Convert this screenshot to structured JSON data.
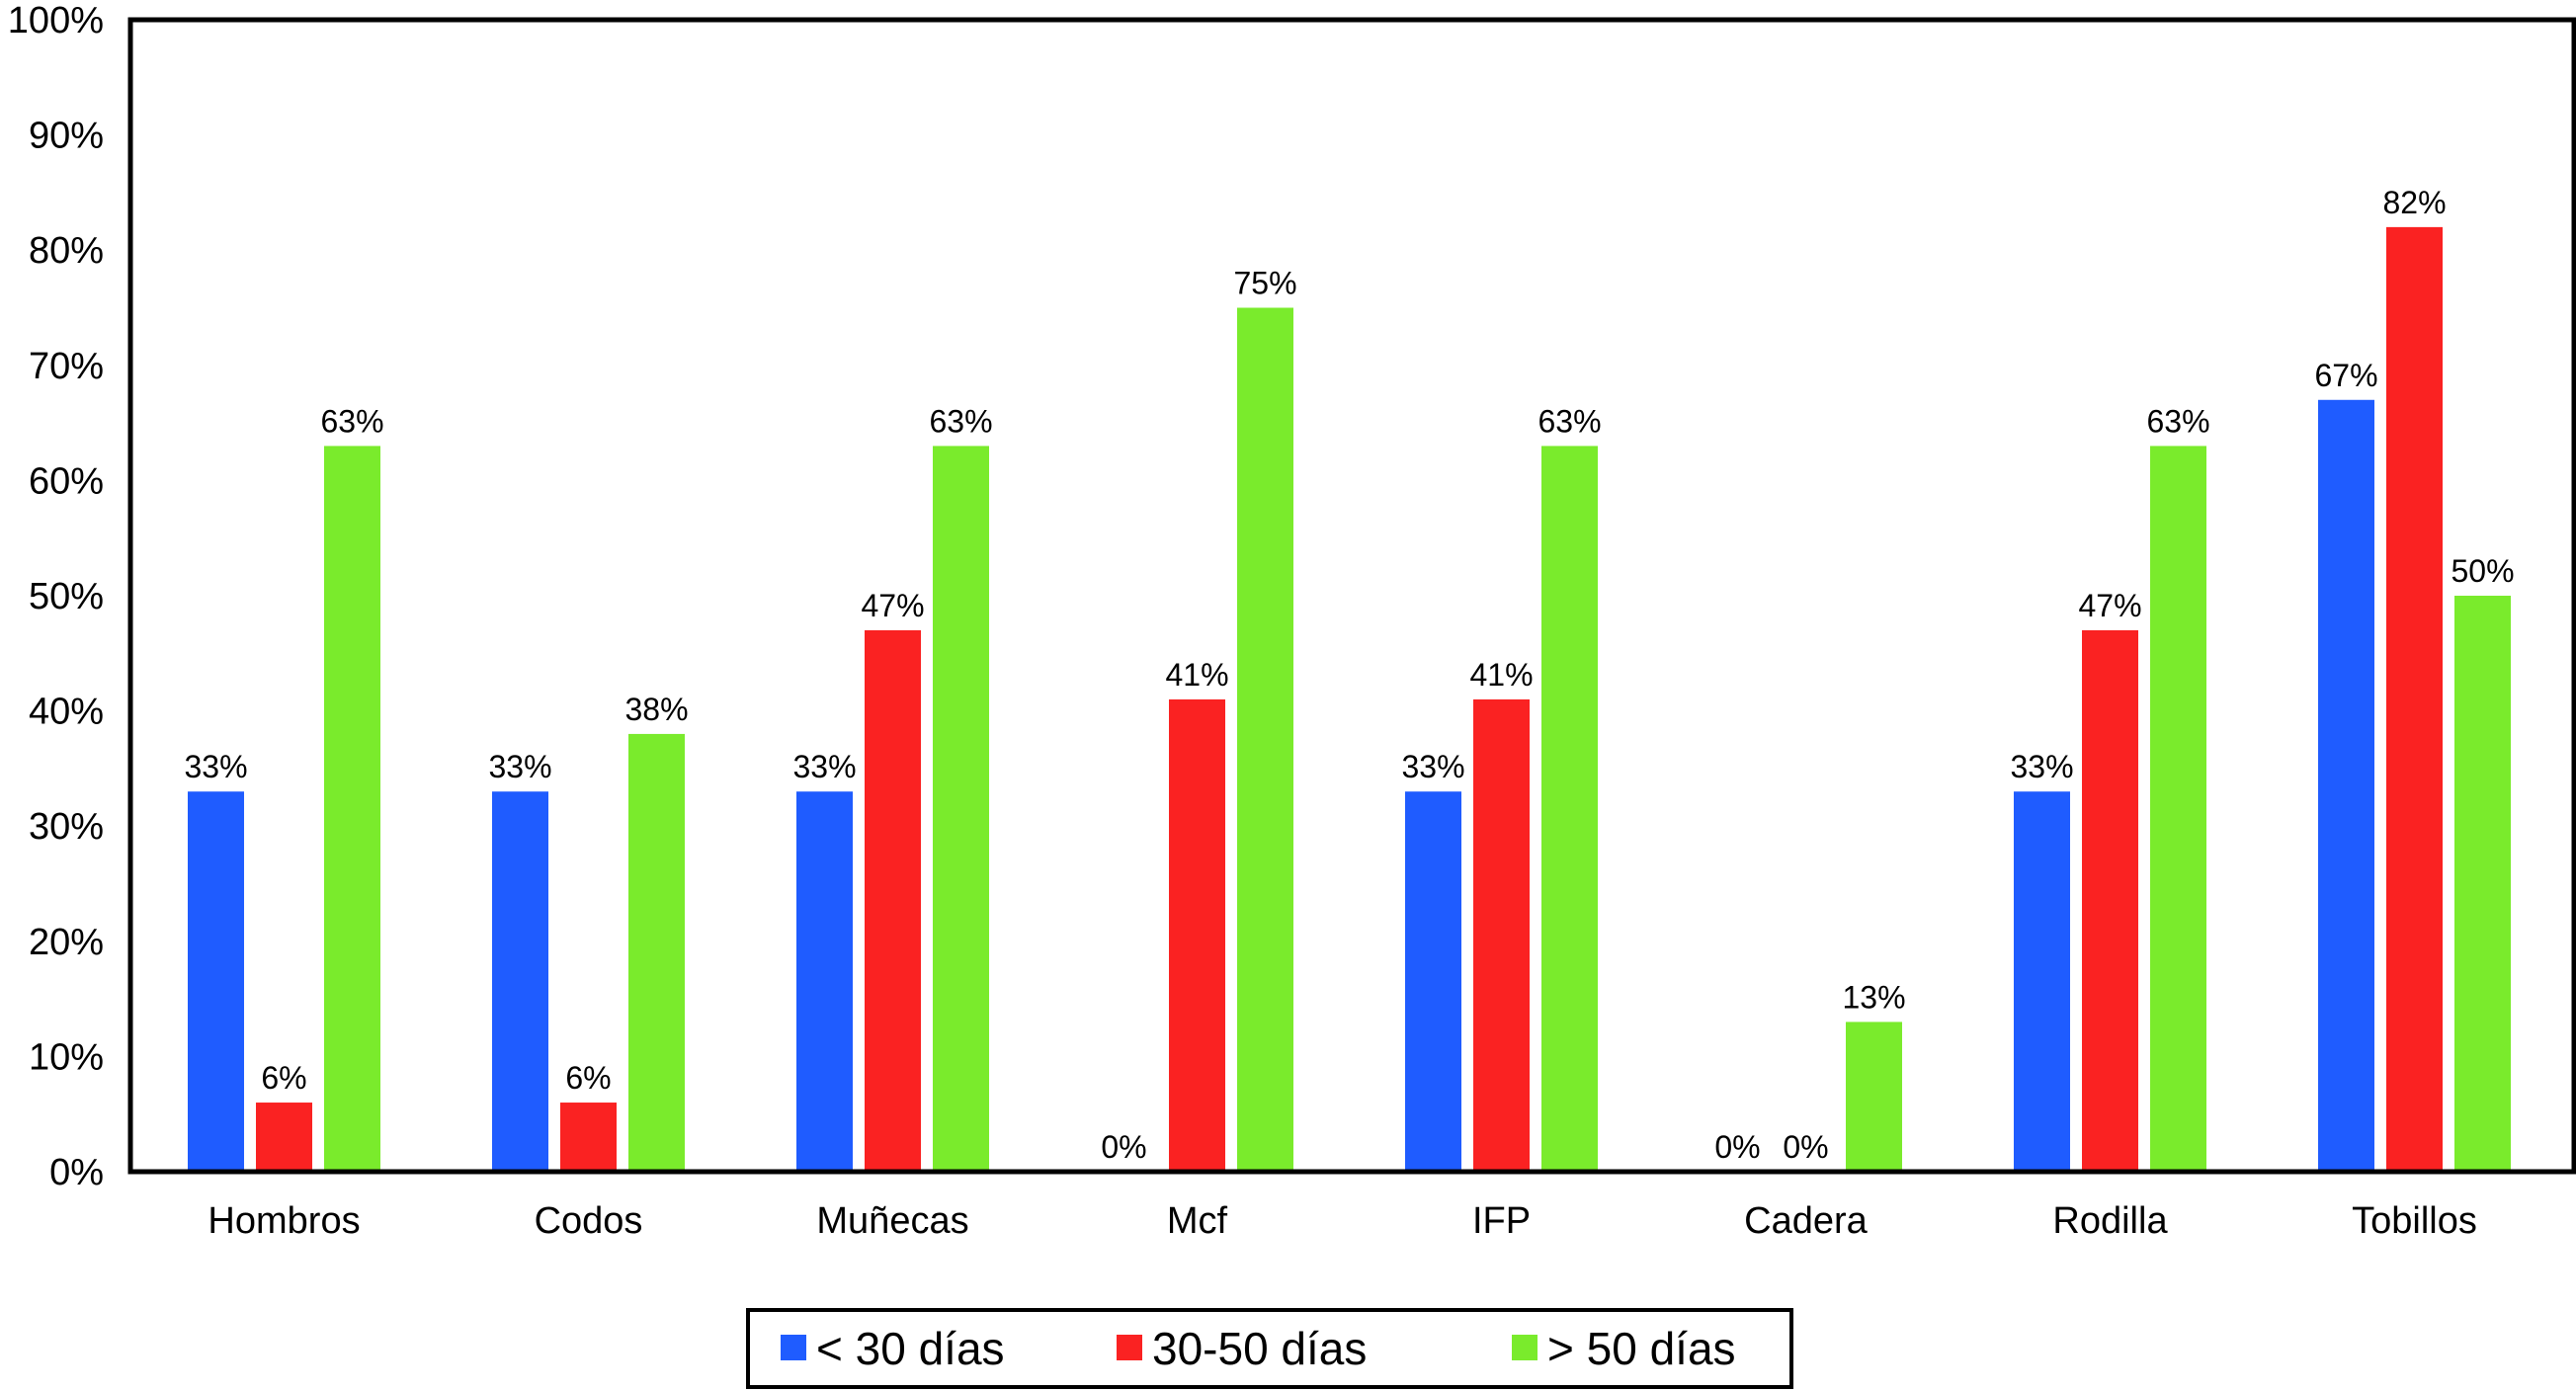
{
  "chart_data": {
    "type": "bar",
    "title": "",
    "xlabel": "",
    "ylabel": "",
    "ylim": [
      0,
      100
    ],
    "yticks": [
      0,
      10,
      20,
      30,
      40,
      50,
      60,
      70,
      80,
      90,
      100
    ],
    "ytick_labels": [
      "0%",
      "10%",
      "20%",
      "30%",
      "40%",
      "50%",
      "60%",
      "70%",
      "80%",
      "90%",
      "100%"
    ],
    "grid": false,
    "legend_position": "bottom-center",
    "categories": [
      "Hombros",
      "Codos",
      "Muñecas",
      "Mcf",
      "IFP",
      "Cadera",
      "Rodilla",
      "Tobillos"
    ],
    "series": [
      {
        "name": "< 30 días",
        "color": "#1f5cff",
        "values": [
          33,
          33,
          33,
          0,
          33,
          0,
          33,
          67
        ],
        "labels": [
          "33%",
          "33%",
          "33%",
          "",
          "33%",
          "0%",
          "33%",
          "67%"
        ]
      },
      {
        "name": "30-50 días",
        "color": "#fa2222",
        "values": [
          6,
          6,
          47,
          41,
          41,
          0,
          47,
          82
        ],
        "labels": [
          "6%",
          "6%",
          "47%",
          "41%",
          "41%",
          "0%",
          "47%",
          "82%"
        ]
      },
      {
        "name": "> 50 días",
        "color": "#7aeb2c",
        "values": [
          63,
          38,
          63,
          75,
          63,
          13,
          63,
          50
        ],
        "labels": [
          "63%",
          "38%",
          "63%",
          "75%",
          "63%",
          "13%",
          "63%",
          "50%"
        ]
      }
    ],
    "extra_labels": [
      {
        "category_index": 3,
        "text": "0%"
      }
    ]
  }
}
